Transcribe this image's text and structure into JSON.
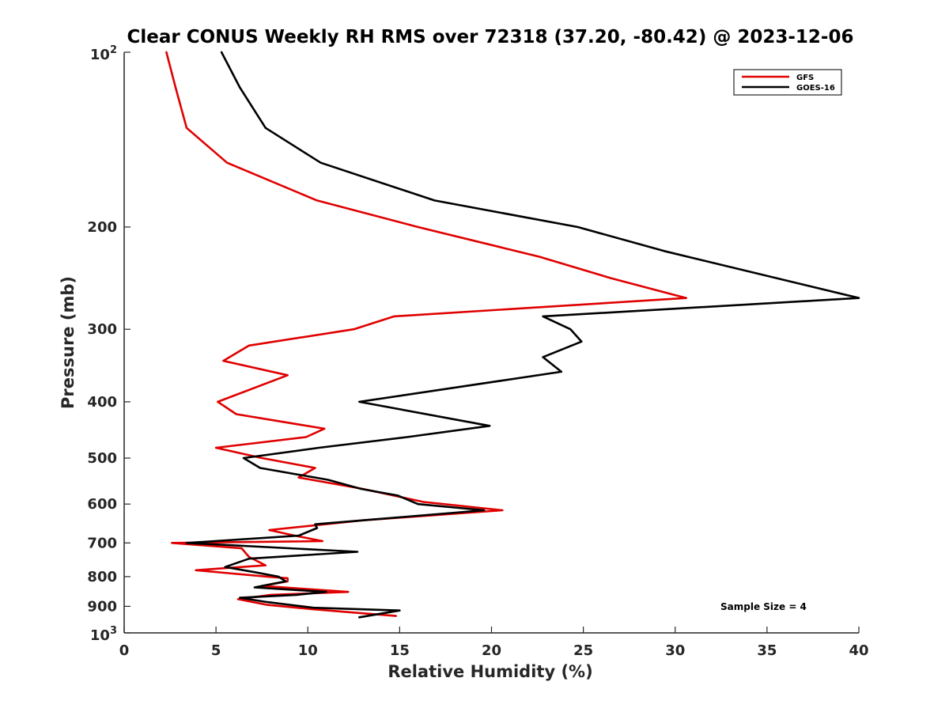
{
  "chart_data": {
    "type": "line",
    "title": "Clear CONUS Weekly RH RMS over 72318 (37.20, -80.42) @ 2023-12-06",
    "xlabel": "Relative Humidity (%)",
    "ylabel": "Pressure (mb)",
    "xlim": [
      0,
      40
    ],
    "ylim": [
      100,
      1000
    ],
    "y_scale": "log",
    "y_reversed": true,
    "x_ticks": [
      "0",
      "5",
      "10",
      "15",
      "20",
      "25",
      "30",
      "35",
      "40"
    ],
    "y_ticks": [
      {
        "value": 100,
        "base": "10",
        "exp": "2"
      },
      {
        "value": 200,
        "label": "200"
      },
      {
        "value": 300,
        "label": "300"
      },
      {
        "value": 400,
        "label": "400"
      },
      {
        "value": 500,
        "label": "500"
      },
      {
        "value": 600,
        "label": "600"
      },
      {
        "value": 700,
        "label": "700"
      },
      {
        "value": 800,
        "label": "800"
      },
      {
        "value": 900,
        "label": "900"
      },
      {
        "value": 1000,
        "base": "10",
        "exp": "3"
      }
    ],
    "legend_position": "top-right",
    "annotation": "Sample Size = 4",
    "series": [
      {
        "name": "GFS",
        "color": "#e00000",
        "points": [
          [
            2.3,
            100
          ],
          [
            2.8,
            115
          ],
          [
            3.4,
            135
          ],
          [
            5.6,
            155
          ],
          [
            10.5,
            180
          ],
          [
            16,
            200
          ],
          [
            22.6,
            225
          ],
          [
            26.5,
            245
          ],
          [
            30.6,
            265
          ],
          [
            14.7,
            285
          ],
          [
            12.5,
            300
          ],
          [
            6.8,
            320
          ],
          [
            5.4,
            340
          ],
          [
            8.9,
            360
          ],
          [
            5.1,
            400
          ],
          [
            6.1,
            420
          ],
          [
            10.9,
            445
          ],
          [
            9.9,
            460
          ],
          [
            5,
            480
          ],
          [
            7.5,
            500
          ],
          [
            10.4,
            520
          ],
          [
            9.5,
            540
          ],
          [
            13,
            565
          ],
          [
            16.3,
            595
          ],
          [
            20.6,
            615
          ],
          [
            13,
            640
          ],
          [
            7.9,
            665
          ],
          [
            9.3,
            680
          ],
          [
            10.8,
            695
          ],
          [
            2.6,
            700
          ],
          [
            6.4,
            715
          ],
          [
            6.8,
            740
          ],
          [
            7.7,
            765
          ],
          [
            3.9,
            780
          ],
          [
            7.8,
            800
          ],
          [
            8.9,
            805
          ],
          [
            8.9,
            815
          ],
          [
            7.5,
            830
          ],
          [
            12.2,
            850
          ],
          [
            8,
            860
          ],
          [
            6.2,
            875
          ],
          [
            7.8,
            895
          ],
          [
            10.2,
            910
          ],
          [
            12.9,
            925
          ],
          [
            14.8,
            935
          ]
        ]
      },
      {
        "name": "GOES-16",
        "color": "#000000",
        "points": [
          [
            5.3,
            100
          ],
          [
            6.3,
            115
          ],
          [
            7.7,
            135
          ],
          [
            10.7,
            155
          ],
          [
            16.9,
            180
          ],
          [
            24.7,
            200
          ],
          [
            29.4,
            220
          ],
          [
            40,
            265
          ],
          [
            22.8,
            285
          ],
          [
            24.3,
            300
          ],
          [
            24.9,
            315
          ],
          [
            22.8,
            335
          ],
          [
            23.8,
            355
          ],
          [
            12.8,
            400
          ],
          [
            19.9,
            440
          ],
          [
            15.4,
            460
          ],
          [
            10.6,
            480
          ],
          [
            6.5,
            500
          ],
          [
            7.4,
            520
          ],
          [
            11.1,
            545
          ],
          [
            12.9,
            565
          ],
          [
            14.9,
            580
          ],
          [
            16,
            600
          ],
          [
            19.6,
            615
          ],
          [
            10.4,
            650
          ],
          [
            10.5,
            660
          ],
          [
            9.5,
            680
          ],
          [
            3.4,
            700
          ],
          [
            12.7,
            725
          ],
          [
            6.8,
            745
          ],
          [
            5.5,
            770
          ],
          [
            7,
            785
          ],
          [
            8.4,
            800
          ],
          [
            8.8,
            815
          ],
          [
            7.1,
            835
          ],
          [
            11,
            850
          ],
          [
            9.4,
            860
          ],
          [
            6.3,
            870
          ],
          [
            7.8,
            885
          ],
          [
            10.3,
            905
          ],
          [
            15,
            915
          ],
          [
            12.8,
            940
          ]
        ]
      }
    ]
  }
}
